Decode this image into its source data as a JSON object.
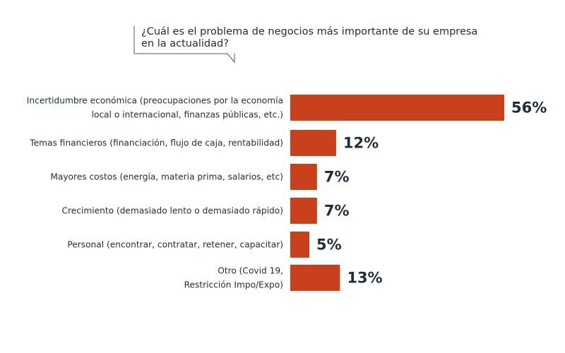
{
  "chart_data": {
    "type": "bar",
    "orientation": "horizontal",
    "title_lines": [
      "¿Cuál es el problema de negocios más importante de su empresa",
      "en la actualidad?"
    ],
    "categories": [
      [
        "Incertidumbre económica (preocupaciones por la economía",
        "local o internacional, finanzas públicas, etc.)"
      ],
      [
        "Temas financieros (financiación, flujo de caja, rentabilidad)"
      ],
      [
        "Mayores costos (energía, materia prima, salarios, etc)"
      ],
      [
        "Crecimiento (demasiado lento o demasiado rápido)"
      ],
      [
        "Personal (encontrar, contratar, retener, capacitar)"
      ],
      [
        "Otro (Covid 19,",
        "Restricción Impo/Expo)"
      ]
    ],
    "values": [
      56,
      12,
      7,
      7,
      5,
      13
    ],
    "value_labels": [
      "56%",
      "12%",
      "7%",
      "7%",
      "5%",
      "13%"
    ],
    "xlim": [
      0,
      56
    ],
    "grid": false,
    "bar_color": "#c8401c",
    "text_color": "#1f2d3d"
  }
}
